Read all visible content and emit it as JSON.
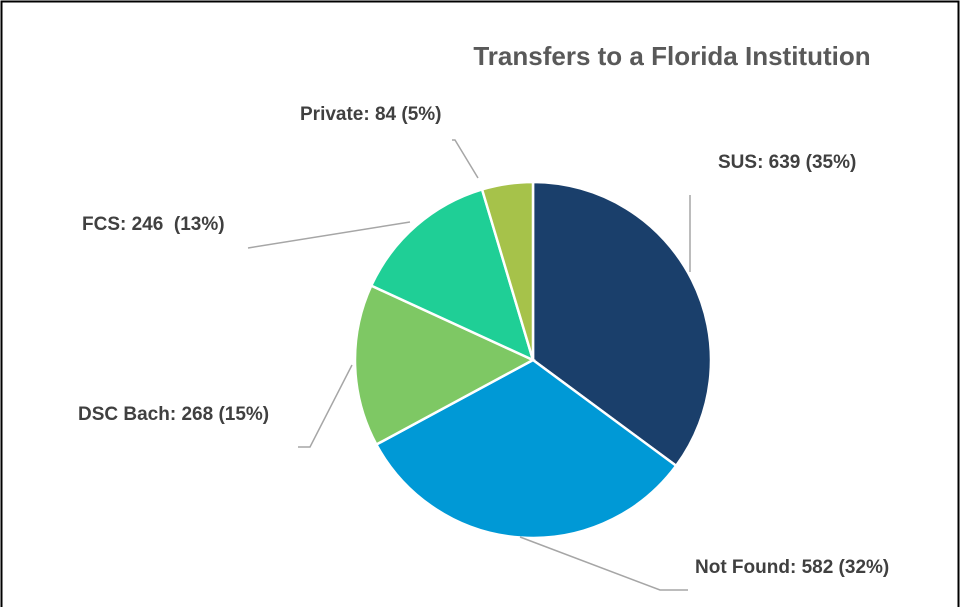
{
  "chart_data": {
    "type": "pie",
    "title": "Transfers to a Florida Institution",
    "values": [
      639,
      582,
      268,
      246,
      84
    ],
    "value_labels": [
      "SUS: 639 (35%)",
      "Not Found: 582 (32%)",
      "DSC Bach: 268 (15%)",
      "FCS: 246  (13%)",
      "Private: 84 (5%)"
    ],
    "colors": [
      "#1a3f6b",
      "#0099d6",
      "#7ec864",
      "#1fcf96",
      "#a6c24a"
    ]
  }
}
